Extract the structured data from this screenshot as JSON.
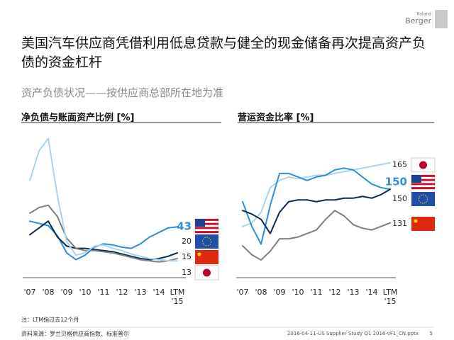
{
  "header": {
    "title": "美国汽车供应商凭借利用低息贷款与健全的现金储备再次提高资产负债的资金杠杆",
    "subtitle": "资产负债状况——按供应商总部所在地为准",
    "logo_top": "Roland",
    "logo_bottom": "Berger"
  },
  "chart_data": [
    {
      "type": "line",
      "title": "净负债与账面资产比例 [%]",
      "categories": [
        "'07",
        null,
        "'08",
        null,
        "'09",
        null,
        "'10",
        null,
        "'11",
        null,
        "'12",
        null,
        "'13",
        null,
        "'14",
        null,
        "LTM\n'15"
      ],
      "ylim": [
        0,
        130
      ],
      "series": [
        {
          "color": "#2f8fd5",
          "values": [
            48,
            46,
            44,
            35,
            20,
            14,
            18,
            25,
            28,
            27,
            25,
            24,
            28,
            34,
            38,
            42,
            43
          ]
        },
        {
          "color": "#0d2b4e",
          "values": [
            36,
            42,
            48,
            34,
            26,
            24,
            24,
            23,
            22,
            21,
            19,
            17,
            15,
            14,
            15,
            17,
            20
          ]
        },
        {
          "color": "#7f7f7f",
          "values": [
            55,
            60,
            62,
            52,
            33,
            24,
            22,
            22,
            21,
            20,
            18,
            16,
            14,
            13,
            12,
            13,
            15
          ]
        },
        {
          "color": "#a8d4f0",
          "values": [
            84,
            110,
            121,
            70,
            30,
            18,
            20,
            26,
            27,
            24,
            22,
            19,
            17,
            15,
            14,
            13,
            13
          ]
        }
      ]
    },
    {
      "type": "line",
      "title": "营运资金比率 [%]",
      "categories": [
        "'07",
        null,
        "'08",
        null,
        "'09",
        null,
        "'10",
        null,
        "'11",
        null,
        "'12",
        null,
        "'13",
        null,
        "'14",
        null,
        "LTM\n'15"
      ],
      "ylim": [
        100,
        185
      ],
      "series": [
        {
          "color": "#a8d4f0",
          "values": [
            129,
            131,
            137,
            151,
            155,
            157,
            156,
            157,
            158,
            158,
            159,
            160,
            161,
            162,
            163,
            164,
            165
          ]
        },
        {
          "color": "#2f8fd5",
          "values": [
            143,
            129,
            119,
            141,
            159,
            159,
            157,
            155,
            157,
            158,
            161,
            162,
            161,
            157,
            153,
            151,
            150
          ]
        },
        {
          "color": "#0d2b4e",
          "values": [
            138,
            136,
            133,
            125,
            137,
            143,
            144,
            144,
            143,
            144,
            144,
            145,
            145,
            146,
            145,
            147,
            150
          ]
        },
        {
          "color": "#7f7f7f",
          "values": [
            118,
            113,
            110,
            115,
            122,
            122,
            123,
            125,
            127,
            133,
            138,
            135,
            130,
            128,
            127,
            129,
            131
          ]
        }
      ]
    }
  ],
  "footnote": "注：LTM指过去12个月",
  "source": "资料来源：罗兰贝格供应商指数、标准普尔",
  "footer": "2016-04-11-US Supplier Study Q1 2016-vF1_CN.pptx",
  "page": "5"
}
